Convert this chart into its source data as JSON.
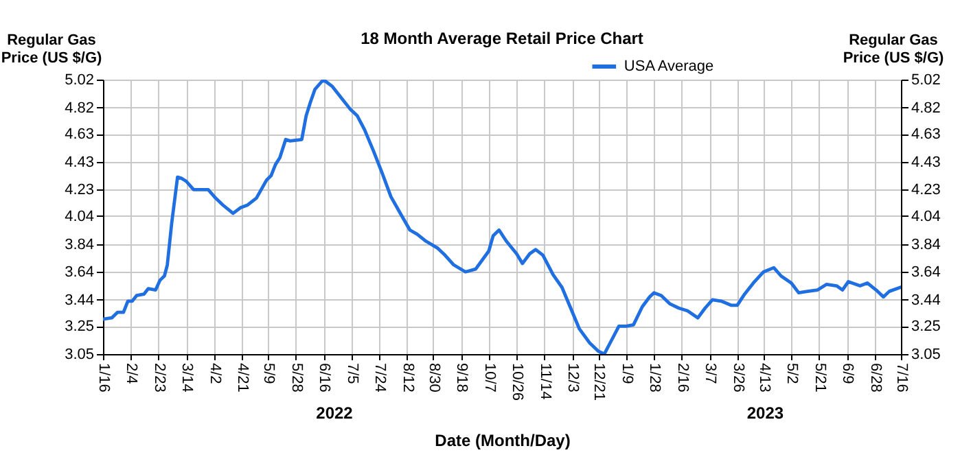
{
  "chart_data": {
    "type": "line",
    "title": "18 Month Average Retail Price Chart",
    "xlabel": "Date (Month/Day)",
    "ylabel": "Regular Gas\nPrice (US $/G)",
    "y2label": "Regular Gas\nPrice (US $/G)",
    "xlim": [
      "2022-01-16",
      "2023-07-16"
    ],
    "xticks": [
      {
        "value": "2022-01-16",
        "label": "1/16"
      },
      {
        "value": "2022-02-04",
        "label": "2/4"
      },
      {
        "value": "2022-02-23",
        "label": "2/23"
      },
      {
        "value": "2022-03-14",
        "label": "3/14"
      },
      {
        "value": "2022-04-02",
        "label": "4/2"
      },
      {
        "value": "2022-04-21",
        "label": "4/21"
      },
      {
        "value": "2022-05-09",
        "label": "5/9"
      },
      {
        "value": "2022-05-28",
        "label": "5/28"
      },
      {
        "value": "2022-06-16",
        "label": "6/16"
      },
      {
        "value": "2022-07-05",
        "label": "7/5"
      },
      {
        "value": "2022-07-24",
        "label": "7/24"
      },
      {
        "value": "2022-08-12",
        "label": "8/12"
      },
      {
        "value": "2022-08-30",
        "label": "8/30"
      },
      {
        "value": "2022-09-18",
        "label": "9/18"
      },
      {
        "value": "2022-10-07",
        "label": "10/7"
      },
      {
        "value": "2022-10-26",
        "label": "10/26"
      },
      {
        "value": "2022-11-14",
        "label": "11/14"
      },
      {
        "value": "2022-12-03",
        "label": "12/3"
      },
      {
        "value": "2022-12-21",
        "label": "12/21"
      },
      {
        "value": "2023-01-09",
        "label": "1/9"
      },
      {
        "value": "2023-01-28",
        "label": "1/28"
      },
      {
        "value": "2023-02-16",
        "label": "2/16"
      },
      {
        "value": "2023-03-07",
        "label": "3/7"
      },
      {
        "value": "2023-03-26",
        "label": "3/26"
      },
      {
        "value": "2023-04-13",
        "label": "4/13"
      },
      {
        "value": "2023-05-02",
        "label": "5/2"
      },
      {
        "value": "2023-05-21",
        "label": "5/21"
      },
      {
        "value": "2023-06-09",
        "label": "6/9"
      },
      {
        "value": "2023-06-28",
        "label": "6/28"
      },
      {
        "value": "2023-07-16",
        "label": "7/16"
      }
    ],
    "ylim": [
      3.05,
      5.02
    ],
    "yticks": [
      3.05,
      3.25,
      3.44,
      3.64,
      3.84,
      4.04,
      4.23,
      4.43,
      4.63,
      4.82,
      5.02
    ],
    "y2lim": [
      3.05,
      5.02
    ],
    "y2ticks": [
      3.05,
      3.25,
      3.44,
      3.64,
      3.84,
      4.04,
      4.23,
      4.43,
      4.63,
      4.82,
      5.02
    ],
    "grid": true,
    "legend": "top right",
    "annotations": [
      "2022",
      "2023"
    ],
    "x": [
      "2022-01-16",
      "2022-01-22",
      "2022-01-26",
      "2022-01-30",
      "2022-02-02",
      "2022-02-05",
      "2022-02-08",
      "2022-02-13",
      "2022-02-16",
      "2022-02-21",
      "2022-02-24",
      "2022-02-27",
      "2022-03-01",
      "2022-03-04",
      "2022-03-08",
      "2022-03-11",
      "2022-03-14",
      "2022-03-19",
      "2022-03-24",
      "2022-03-29",
      "2022-04-03",
      "2022-04-08",
      "2022-04-15",
      "2022-04-20",
      "2022-04-25",
      "2022-05-01",
      "2022-05-08",
      "2022-05-11",
      "2022-05-14",
      "2022-05-17",
      "2022-05-21",
      "2022-05-24",
      "2022-06-01",
      "2022-06-04",
      "2022-06-07",
      "2022-06-10",
      "2022-06-15",
      "2022-06-17",
      "2022-06-22",
      "2022-06-28",
      "2022-07-04",
      "2022-07-09",
      "2022-07-14",
      "2022-07-20",
      "2022-07-26",
      "2022-08-01",
      "2022-08-08",
      "2022-08-14",
      "2022-08-19",
      "2022-08-25",
      "2022-09-02",
      "2022-09-07",
      "2022-09-13",
      "2022-09-21",
      "2022-09-28",
      "2022-10-07",
      "2022-10-10",
      "2022-10-14",
      "2022-10-19",
      "2022-10-26",
      "2022-10-30",
      "2022-11-04",
      "2022-11-08",
      "2022-11-13",
      "2022-11-20",
      "2022-11-26",
      "2022-12-02",
      "2022-12-08",
      "2022-12-15",
      "2022-12-21",
      "2022-12-25",
      "2022-12-29",
      "2023-01-04",
      "2023-01-09",
      "2023-01-14",
      "2023-01-20",
      "2023-01-25",
      "2023-01-28",
      "2023-02-02",
      "2023-02-08",
      "2023-02-14",
      "2023-02-20",
      "2023-02-27",
      "2023-03-04",
      "2023-03-09",
      "2023-03-15",
      "2023-03-22",
      "2023-03-26",
      "2023-03-31",
      "2023-04-06",
      "2023-04-13",
      "2023-04-20",
      "2023-04-25",
      "2023-05-02",
      "2023-05-07",
      "2023-05-13",
      "2023-05-20",
      "2023-05-26",
      "2023-06-02",
      "2023-06-06",
      "2023-06-10",
      "2023-06-18",
      "2023-06-23",
      "2023-06-29",
      "2023-07-04",
      "2023-07-08",
      "2023-07-16"
    ],
    "series": [
      {
        "name": "USA Average",
        "color": "#1f6fe0",
        "values": [
          3.3,
          3.31,
          3.35,
          3.35,
          3.43,
          3.43,
          3.47,
          3.48,
          3.52,
          3.51,
          3.58,
          3.61,
          3.69,
          3.99,
          4.32,
          4.31,
          4.29,
          4.23,
          4.23,
          4.23,
          4.17,
          4.12,
          4.06,
          4.1,
          4.12,
          4.17,
          4.3,
          4.33,
          4.41,
          4.46,
          4.59,
          4.58,
          4.59,
          4.76,
          4.86,
          4.95,
          5.01,
          5.01,
          4.97,
          4.89,
          4.81,
          4.76,
          4.66,
          4.51,
          4.35,
          4.18,
          4.05,
          3.94,
          3.91,
          3.86,
          3.81,
          3.76,
          3.69,
          3.64,
          3.66,
          3.79,
          3.9,
          3.94,
          3.86,
          3.77,
          3.7,
          3.77,
          3.8,
          3.76,
          3.62,
          3.53,
          3.38,
          3.23,
          3.13,
          3.07,
          3.05,
          3.13,
          3.25,
          3.25,
          3.26,
          3.39,
          3.46,
          3.49,
          3.47,
          3.41,
          3.38,
          3.36,
          3.31,
          3.38,
          3.44,
          3.43,
          3.4,
          3.4,
          3.48,
          3.56,
          3.64,
          3.67,
          3.61,
          3.56,
          3.49,
          3.5,
          3.51,
          3.55,
          3.54,
          3.51,
          3.57,
          3.54,
          3.56,
          3.51,
          3.46,
          3.5,
          3.53
        ]
      }
    ]
  }
}
